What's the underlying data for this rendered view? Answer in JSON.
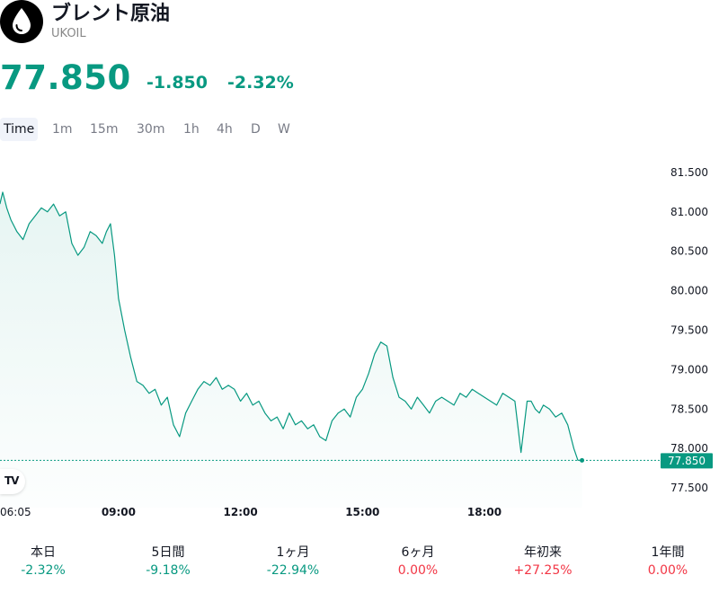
{
  "header": {
    "logo_icon": "drop-icon",
    "title": "ブレント原油",
    "symbol": "UKOIL"
  },
  "quote": {
    "price": "77.850",
    "change": "-1.850",
    "change_pct": "-2.32%",
    "color": "#089981"
  },
  "tabs": [
    {
      "label": "Time",
      "active": true
    },
    {
      "label": "1m"
    },
    {
      "label": "15m"
    },
    {
      "label": "30m"
    },
    {
      "label": "1h"
    },
    {
      "label": "4h"
    },
    {
      "label": "D"
    },
    {
      "label": "W"
    }
  ],
  "chart_data": {
    "type": "area",
    "line_color": "#089981",
    "ylim": [
      77.25,
      81.75
    ],
    "yticks": [
      "81.500",
      "81.000",
      "80.500",
      "80.000",
      "79.500",
      "79.000",
      "78.500",
      "78.000",
      "77.500"
    ],
    "ytick_values": [
      81.5,
      81.0,
      80.5,
      80.0,
      79.5,
      79.0,
      78.5,
      78.0,
      77.5
    ],
    "xlim_hours": [
      6.0833,
      22.333
    ],
    "xticks": [
      {
        "label": "06:05",
        "hour": 6.0833,
        "bold": false
      },
      {
        "label": "09:00",
        "hour": 9.0,
        "bold": true
      },
      {
        "label": "12:00",
        "hour": 12.0,
        "bold": true
      },
      {
        "label": "15:00",
        "hour": 15.0,
        "bold": true
      },
      {
        "label": "18:00",
        "hour": 18.0,
        "bold": true
      }
    ],
    "last_value": "77.850",
    "grid": false,
    "series": [
      {
        "x": [
          6.08,
          6.15,
          6.25,
          6.35,
          6.5,
          6.65,
          6.8,
          6.95,
          7.1,
          7.25,
          7.4,
          7.55,
          7.7,
          7.85,
          8.0,
          8.15,
          8.3,
          8.45,
          8.6,
          8.7,
          8.8,
          8.9,
          9.0,
          9.15,
          9.3,
          9.45,
          9.6,
          9.75,
          9.9,
          10.05,
          10.2,
          10.35,
          10.5,
          10.65,
          10.8,
          10.95,
          11.1,
          11.25,
          11.4,
          11.55,
          11.7,
          11.85,
          12.0,
          12.15,
          12.3,
          12.45,
          12.6,
          12.75,
          12.9,
          13.05,
          13.2,
          13.35,
          13.5,
          13.65,
          13.8,
          13.95,
          14.1,
          14.25,
          14.4,
          14.55,
          14.7,
          14.85,
          15.0,
          15.15,
          15.3,
          15.45,
          15.6,
          15.75,
          15.9,
          16.05,
          16.2,
          16.35,
          16.5,
          16.65,
          16.8,
          16.95,
          17.1,
          17.25,
          17.4,
          17.55,
          17.7,
          17.85,
          18.0,
          18.15,
          18.3,
          18.45,
          18.6,
          18.75,
          18.9,
          19.05,
          19.15,
          19.25,
          19.35,
          19.45,
          19.6,
          19.75,
          19.9,
          20.05,
          20.2,
          20.3,
          20.4
        ],
        "values": [
          81.1,
          81.25,
          81.05,
          80.9,
          80.75,
          80.65,
          80.85,
          80.95,
          81.05,
          81.0,
          81.1,
          80.95,
          81.0,
          80.6,
          80.45,
          80.55,
          80.75,
          80.7,
          80.6,
          80.75,
          80.85,
          80.45,
          79.9,
          79.5,
          79.15,
          78.85,
          78.8,
          78.7,
          78.75,
          78.55,
          78.65,
          78.3,
          78.15,
          78.45,
          78.6,
          78.75,
          78.85,
          78.8,
          78.9,
          78.75,
          78.8,
          78.75,
          78.6,
          78.7,
          78.55,
          78.6,
          78.45,
          78.35,
          78.4,
          78.25,
          78.45,
          78.3,
          78.35,
          78.25,
          78.3,
          78.15,
          78.1,
          78.35,
          78.45,
          78.5,
          78.4,
          78.65,
          78.75,
          78.95,
          79.2,
          79.35,
          79.3,
          78.9,
          78.65,
          78.6,
          78.5,
          78.65,
          78.55,
          78.45,
          78.6,
          78.65,
          78.6,
          78.55,
          78.7,
          78.65,
          78.75,
          78.7,
          78.65,
          78.6,
          78.55,
          78.7,
          78.65,
          78.6,
          77.95,
          78.6,
          78.6,
          78.5,
          78.45,
          78.55,
          78.5,
          78.4,
          78.45,
          78.3,
          78.0,
          77.85,
          77.85
        ]
      }
    ]
  },
  "tv_badge": {
    "label": "TV",
    "icon": "tradingview-logo-icon"
  },
  "performance": [
    {
      "label": "本日",
      "value": "-2.32%",
      "trend": "pos"
    },
    {
      "label": "5日間",
      "value": "-9.18%",
      "trend": "pos"
    },
    {
      "label": "1ヶ月",
      "value": "-22.94%",
      "trend": "pos"
    },
    {
      "label": "6ヶ月",
      "value": "0.00%",
      "trend": "neg"
    },
    {
      "label": "年初来",
      "value": "+27.25%",
      "trend": "neg"
    },
    {
      "label": "1年間",
      "value": "0.00%",
      "trend": "neg"
    }
  ]
}
